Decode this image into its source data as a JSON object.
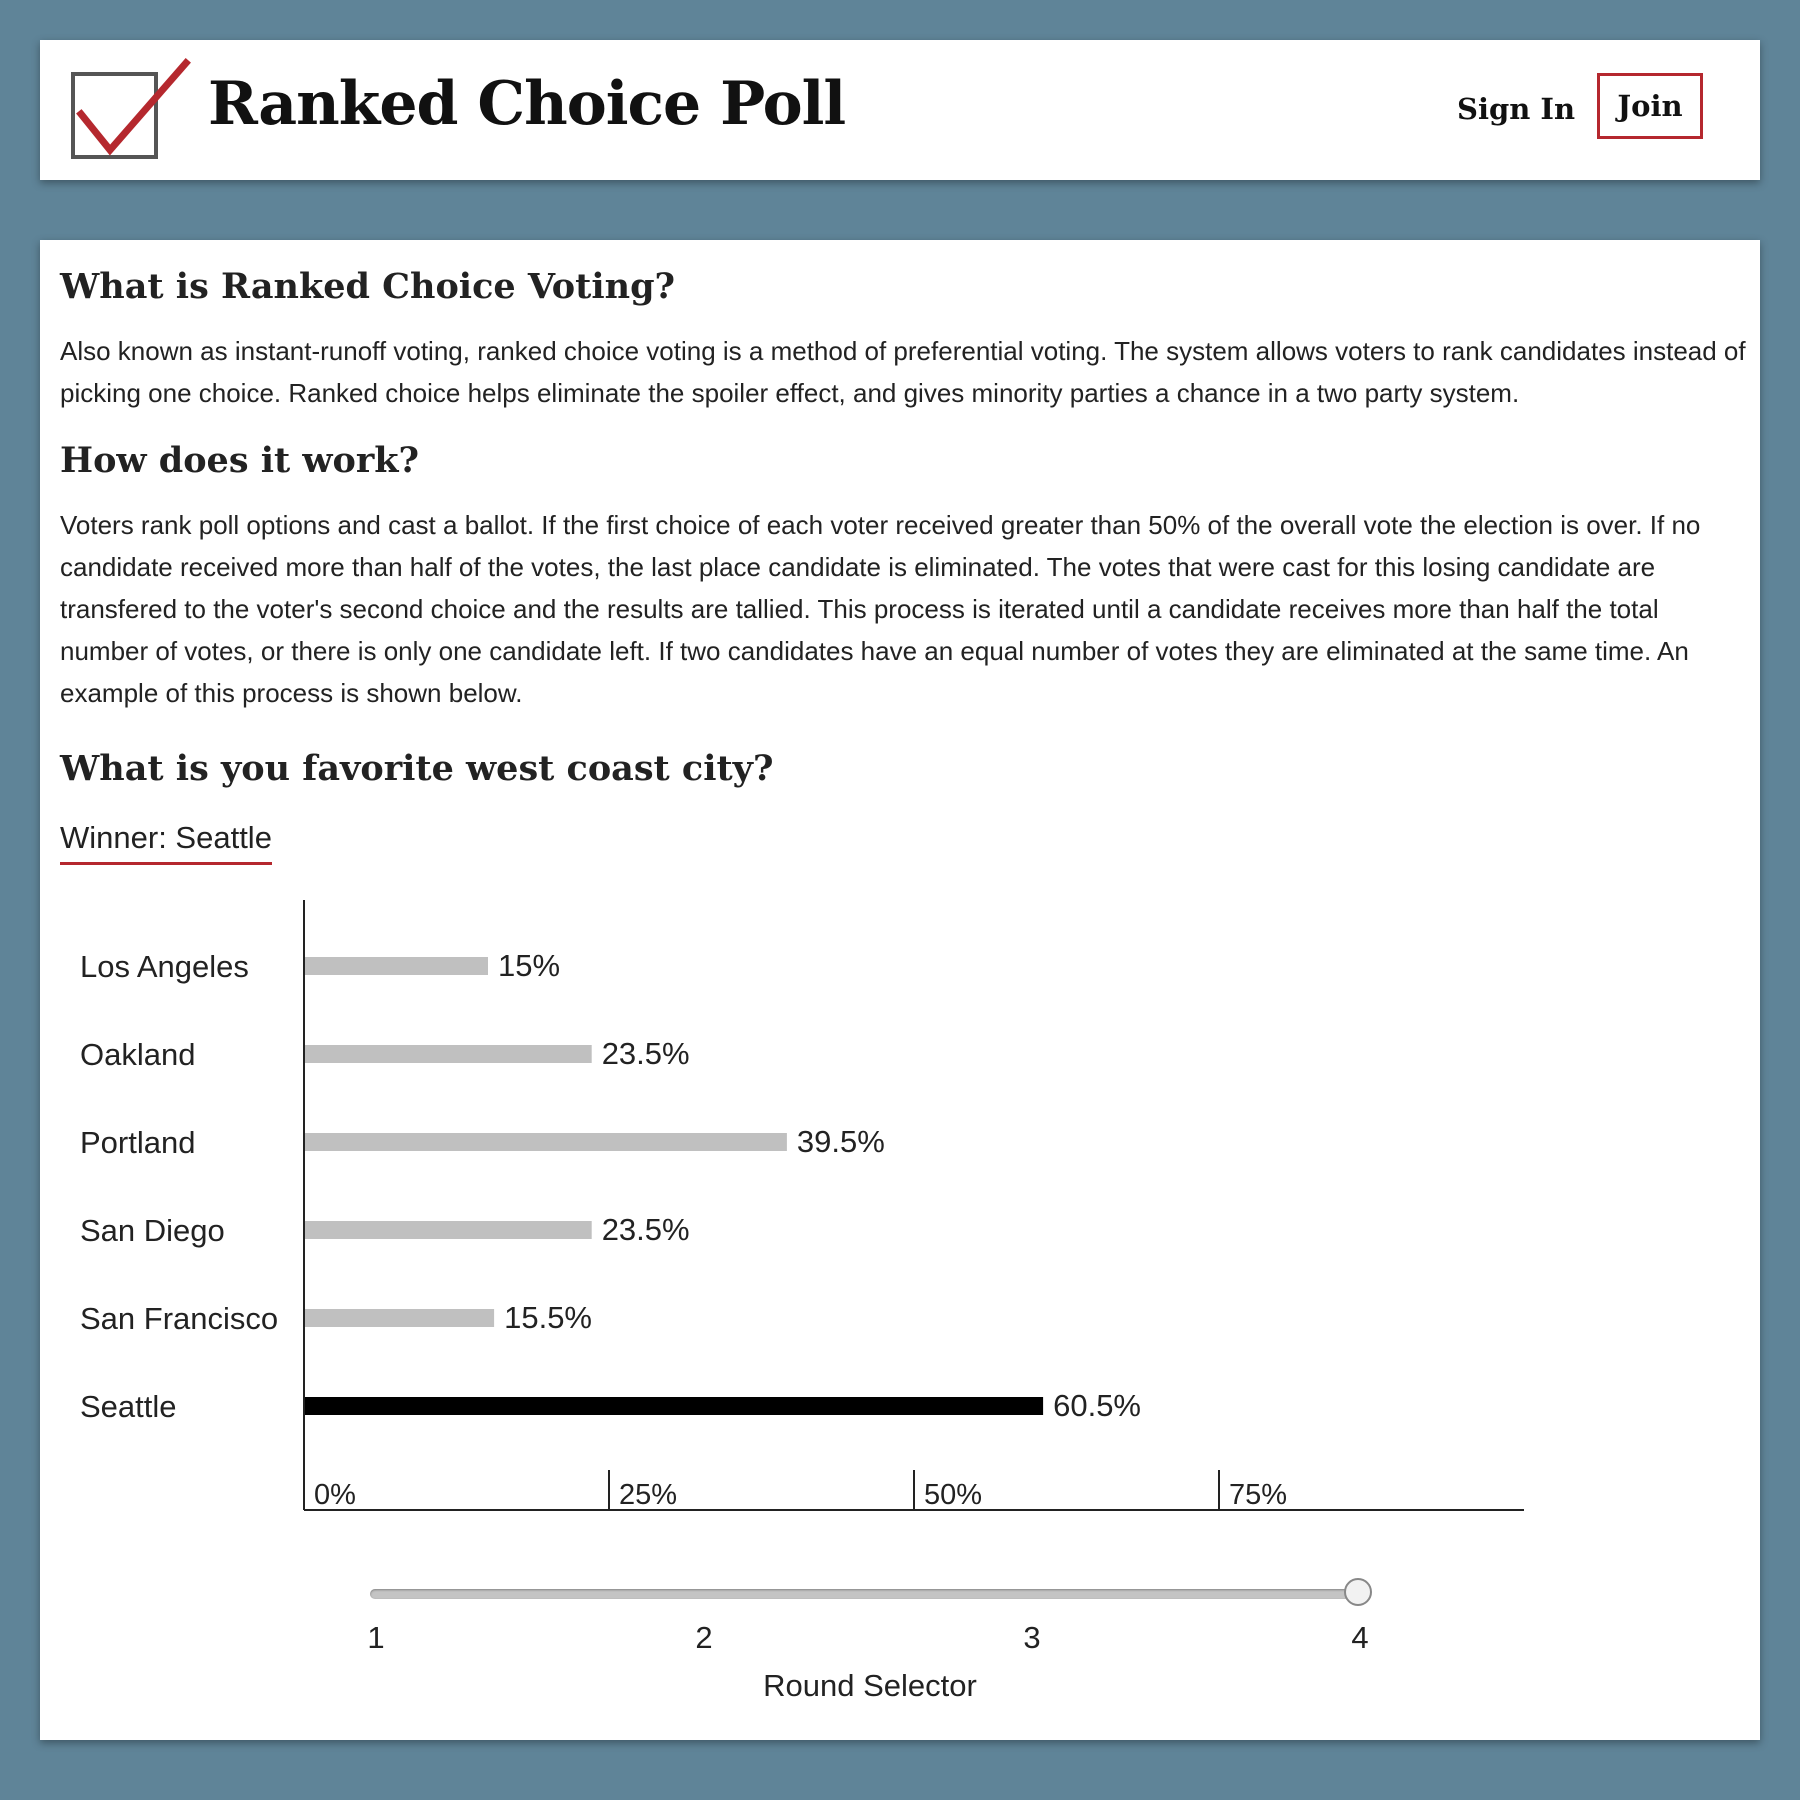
{
  "header": {
    "title": "Ranked Choice Poll",
    "sign_in": "Sign In",
    "join": "Join",
    "accent_color": "#b5282e"
  },
  "intro": {
    "heading": "What is Ranked Choice Voting?",
    "body": "Also known as instant-runoff voting, ranked choice voting is a method of preferential voting. The system allows voters to rank candidates instead of picking one choice. Ranked choice helps eliminate the spoiler effect, and gives minority parties a chance in a two party system."
  },
  "how": {
    "heading": "How does it work?",
    "body": "Voters rank poll options and cast a ballot. If the first choice of each voter received greater than 50% of the overall vote the election is over. If no candidate received more than half of the votes, the last place candidate is eliminated. The votes that were cast for this losing candidate are transfered to the voter's second choice and the results are tallied. This process is iterated until a candidate receives more than half the total number of votes, or there is only one candidate left. If two candidates have an equal number of votes they are eliminated at the same time. An example of this process is shown below."
  },
  "poll": {
    "question": "What is you favorite west coast city?",
    "winner_text": "Winner: Seattle"
  },
  "chart_data": {
    "type": "bar",
    "orientation": "horizontal",
    "categories": [
      "Los Angeles",
      "Oakland",
      "Portland",
      "San Diego",
      "San Francisco",
      "Seattle"
    ],
    "values": [
      15,
      23.5,
      39.5,
      23.5,
      15.5,
      60.5
    ],
    "value_labels": [
      "15%",
      "23.5%",
      "39.5%",
      "23.5%",
      "15.5%",
      "60.5%"
    ],
    "highlight": "Seattle",
    "x_ticks": [
      0,
      25,
      50,
      75
    ],
    "x_tick_labels": [
      "0%",
      "25%",
      "50%",
      "75%"
    ],
    "xlim": [
      0,
      100
    ],
    "bar_color": "#c0c0c0",
    "highlight_color": "#000000"
  },
  "round_selector": {
    "labels": [
      "1",
      "2",
      "3",
      "4"
    ],
    "selected": "4",
    "caption": "Round Selector"
  }
}
